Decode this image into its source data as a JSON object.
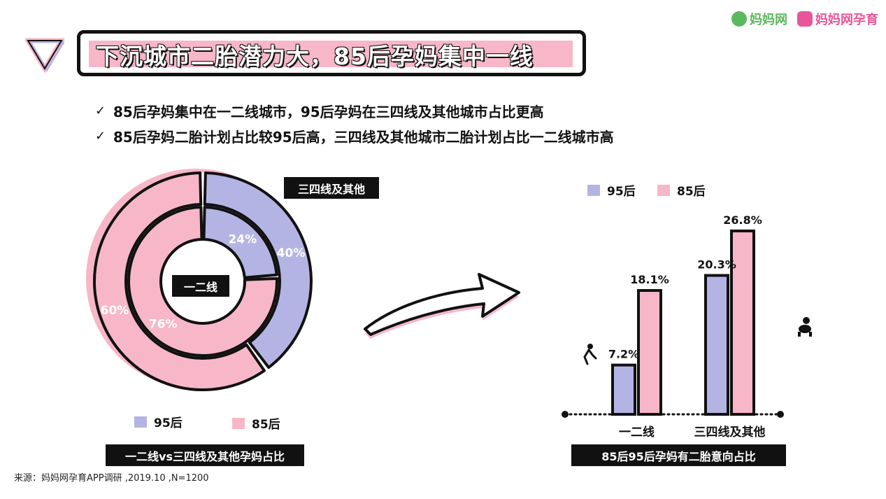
{
  "header": {
    "title": "下沉城市二胎潜力大，85后孕妈集中一线",
    "brand_1": "妈妈网",
    "brand_2": "妈妈网孕育"
  },
  "bullets": [
    "85后孕妈集中在一二线城市，95后孕妈在三四线及其他城市占比更高",
    "85后孕妈二胎计划占比较95后高，三四线及其他城市二胎计划占比一二线城市高"
  ],
  "check_mark": "✓",
  "source": "来源：妈妈网孕育APP调研 ,2019.10 ,N=1200",
  "colors": {
    "post95": "#b4b4e4",
    "post85": "#f7b7c8",
    "dark": "#111111"
  },
  "chart_data": [
    {
      "type": "pie",
      "subtype": "double-donut",
      "title": "一二线vs三四线及其他孕妈占比",
      "rings": [
        {
          "name": "三四线及其他",
          "slices": [
            {
              "series": "95后",
              "value": 40,
              "label": "40%"
            },
            {
              "series": "85后",
              "value": 60,
              "label": "60%"
            }
          ]
        },
        {
          "name": "一二线",
          "slices": [
            {
              "series": "95后",
              "value": 24,
              "label": "24%"
            },
            {
              "series": "85后",
              "value": 76,
              "label": "76%"
            }
          ]
        }
      ],
      "legend": [
        "95后",
        "85后"
      ],
      "legend_placement": "bottom"
    },
    {
      "type": "bar",
      "title": "85后95后孕妈有二胎意向占比",
      "categories": [
        "一二线",
        "三四线及其他"
      ],
      "series": [
        {
          "name": "95后",
          "values": [
            7.2,
            20.3
          ],
          "labels": [
            "7.2%",
            "20.3%"
          ]
        },
        {
          "name": "85后",
          "values": [
            18.1,
            26.8
          ],
          "labels": [
            "18.1%",
            "26.8%"
          ]
        }
      ],
      "ylim": [
        0,
        30
      ],
      "legend_placement": "top-left",
      "grid": false
    }
  ]
}
